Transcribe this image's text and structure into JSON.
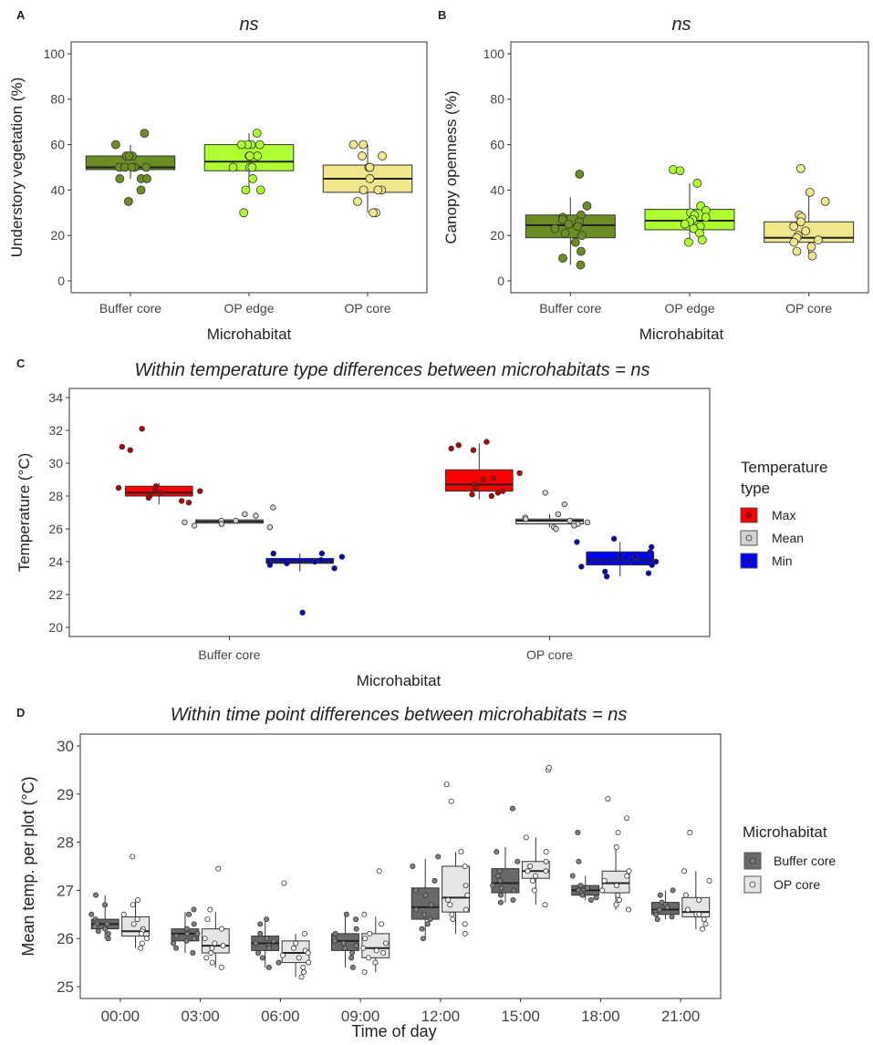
{
  "chart_data": [
    {
      "panel": "A",
      "type": "boxplot",
      "title": "ns",
      "xlabel": "Microhabitat",
      "ylabel": "Understory vegetation (%)",
      "ylim": [
        0,
        100
      ],
      "yticks": [
        0,
        20,
        40,
        60,
        80,
        100
      ],
      "categories": [
        "Buffer core",
        "OP edge",
        "OP core"
      ],
      "colors": [
        "#6b8e23",
        "#adff2f",
        "#f0e68c"
      ],
      "boxes": [
        {
          "q1": 49,
          "median": 50,
          "q3": 55,
          "lo": 45,
          "hi": 60
        },
        {
          "q1": 48.5,
          "median": 52.5,
          "q3": 60,
          "lo": 40,
          "hi": 65
        },
        {
          "q1": 39,
          "median": 45,
          "q3": 51,
          "lo": 30,
          "hi": 60
        }
      ],
      "points": [
        [
          65,
          60,
          55,
          55,
          55,
          50,
          50,
          50,
          50,
          50,
          45,
          45,
          45,
          40,
          35
        ],
        [
          65,
          60,
          60,
          60,
          60,
          55,
          55,
          55,
          50,
          50,
          50,
          45,
          40,
          40,
          30
        ],
        [
          60,
          60,
          55,
          55,
          50,
          50,
          50,
          45,
          45,
          40,
          40,
          40,
          35,
          30,
          30
        ]
      ]
    },
    {
      "panel": "B",
      "type": "boxplot",
      "title": "ns",
      "xlabel": "Microhabitat",
      "ylabel": "Canopy openness (%)",
      "ylim": [
        0,
        100
      ],
      "yticks": [
        0,
        20,
        40,
        60,
        80,
        100
      ],
      "categories": [
        "Buffer core",
        "OP edge",
        "OP core"
      ],
      "colors": [
        "#6b8e23",
        "#adff2f",
        "#f0e68c"
      ],
      "boxes": [
        {
          "q1": 19,
          "median": 24.5,
          "q3": 29,
          "lo": 7,
          "hi": 37
        },
        {
          "q1": 22.5,
          "median": 26.5,
          "q3": 31.5,
          "lo": 17,
          "hi": 43
        },
        {
          "q1": 17,
          "median": 19,
          "q3": 26,
          "lo": 11,
          "hi": 39
        }
      ],
      "points": [
        [
          47,
          33,
          29,
          28,
          27,
          26,
          25,
          24,
          23,
          21,
          20,
          17,
          13,
          10,
          7
        ],
        [
          49,
          48.5,
          43,
          33,
          31,
          30,
          29,
          28,
          27,
          26,
          25,
          24,
          23,
          21,
          18,
          17
        ],
        [
          49.5,
          39,
          35,
          29,
          28,
          26,
          24,
          22,
          20,
          19,
          18,
          17,
          15,
          13,
          11
        ]
      ]
    },
    {
      "panel": "C",
      "type": "boxplot",
      "title": "Within temperature type differences between microhabitats = ns",
      "xlabel": "Microhabitat",
      "ylabel": "Temperature (°C)",
      "ylim": [
        20,
        34
      ],
      "yticks": [
        20,
        22,
        24,
        26,
        28,
        30,
        32,
        34
      ],
      "categories": [
        "Buffer core",
        "OP core"
      ],
      "legend": {
        "title": "Temperature type",
        "entries": [
          "Max",
          "Mean",
          "Min"
        ]
      },
      "colors": {
        "Max": "#ff0000",
        "Mean": "#d3d3d3",
        "Min": "#0000ff"
      },
      "series": [
        {
          "name": "Max",
          "boxes": [
            {
              "q1": 28.0,
              "median": 28.2,
              "q3": 28.6,
              "lo": 27.5,
              "hi": 28.8
            },
            {
              "q1": 28.3,
              "median": 28.7,
              "q3": 29.6,
              "lo": 27.8,
              "hi": 31.2
            }
          ],
          "points": [
            [
              32.1,
              31.0,
              30.8,
              28.6,
              28.5,
              28.4,
              28.3,
              28.2,
              28.0,
              27.9,
              27.7,
              27.6
            ],
            [
              31.3,
              31.1,
              30.9,
              30.8,
              29.4,
              29.1,
              29.0,
              28.7,
              28.5,
              28.3,
              28.2,
              28.1,
              28.0
            ]
          ]
        },
        {
          "name": "Mean",
          "boxes": [
            {
              "q1": 26.35,
              "median": 26.45,
              "q3": 26.55,
              "lo": 26.3,
              "hi": 26.6
            },
            {
              "q1": 26.3,
              "median": 26.5,
              "q3": 26.6,
              "lo": 26.1,
              "hi": 26.9
            }
          ],
          "points": [
            [
              27.3,
              26.9,
              26.8,
              26.5,
              26.5,
              26.4,
              26.3,
              26.2,
              26.1
            ],
            [
              28.2,
              27.5,
              26.9,
              26.7,
              26.6,
              26.5,
              26.4,
              26.3,
              26.2,
              26.1,
              26.0
            ]
          ]
        },
        {
          "name": "Min",
          "boxes": [
            {
              "q1": 23.9,
              "median": 24.0,
              "q3": 24.2,
              "lo": 23.4,
              "hi": 24.5
            },
            {
              "q1": 23.8,
              "median": 24.1,
              "q3": 24.6,
              "lo": 23.1,
              "hi": 25.2
            }
          ],
          "points": [
            [
              24.5,
              24.5,
              24.3,
              24.1,
              24.0,
              23.9,
              23.8,
              23.6,
              20.9
            ],
            [
              25.4,
              25.2,
              24.9,
              24.6,
              24.4,
              24.3,
              24.1,
              24.0,
              23.8,
              23.7,
              23.4,
              23.3,
              23.1
            ]
          ]
        }
      ]
    },
    {
      "panel": "D",
      "type": "boxplot",
      "title": "Within time point differences between microhabitats = ns",
      "xlabel": "Time of day",
      "ylabel": "Mean temp. per plot (°C)",
      "ylim": [
        25,
        30
      ],
      "yticks": [
        25,
        26,
        27,
        28,
        29,
        30
      ],
      "categories": [
        "00:00",
        "03:00",
        "06:00",
        "09:00",
        "12:00",
        "15:00",
        "18:00",
        "21:00"
      ],
      "legend": {
        "title": "Microhabitat",
        "entries": [
          "Buffer core",
          "OP core"
        ]
      },
      "colors": {
        "Buffer core": "#696969",
        "OP core": "#e5e5e5"
      },
      "series": [
        {
          "name": "Buffer core",
          "boxes": [
            {
              "q1": 26.2,
              "median": 26.3,
              "q3": 26.4,
              "lo": 26.0,
              "hi": 26.9
            },
            {
              "q1": 25.95,
              "median": 26.1,
              "q3": 26.2,
              "lo": 25.7,
              "hi": 26.55
            },
            {
              "q1": 25.75,
              "median": 25.9,
              "q3": 26.05,
              "lo": 25.4,
              "hi": 26.4
            },
            {
              "q1": 25.75,
              "median": 25.95,
              "q3": 26.1,
              "lo": 25.4,
              "hi": 26.5
            },
            {
              "q1": 26.4,
              "median": 26.65,
              "q3": 27.05,
              "lo": 26.0,
              "hi": 27.65
            },
            {
              "q1": 26.95,
              "median": 27.15,
              "q3": 27.45,
              "lo": 26.75,
              "hi": 27.9
            },
            {
              "q1": 26.9,
              "median": 27.0,
              "q3": 27.1,
              "lo": 26.8,
              "hi": 27.3
            },
            {
              "q1": 26.5,
              "median": 26.6,
              "q3": 26.75,
              "lo": 26.4,
              "hi": 27.0
            }
          ],
          "points": [
            [
              26.9,
              26.7,
              26.5,
              26.4,
              26.35,
              26.3,
              26.3,
              26.25,
              26.2,
              26.15,
              26.1,
              26.0
            ],
            [
              26.6,
              26.5,
              26.3,
              26.2,
              26.1,
              26.1,
              26.05,
              26.0,
              25.95,
              25.9,
              25.8,
              25.7
            ],
            [
              26.4,
              26.3,
              26.1,
              26.0,
              25.95,
              25.9,
              25.85,
              25.8,
              25.7,
              25.6,
              25.5,
              25.4
            ],
            [
              26.5,
              26.4,
              26.2,
              26.1,
              26.0,
              25.95,
              25.9,
              25.85,
              25.8,
              25.7,
              25.6,
              25.4
            ],
            [
              27.7,
              27.5,
              27.2,
              27.0,
              26.9,
              26.7,
              26.6,
              26.5,
              26.4,
              26.3,
              26.2,
              26.0
            ],
            [
              28.7,
              27.8,
              27.6,
              27.4,
              27.3,
              27.2,
              27.1,
              27.05,
              27.0,
              26.9,
              26.8,
              26.75
            ],
            [
              28.2,
              27.6,
              27.3,
              27.1,
              27.05,
              27.0,
              27.0,
              26.95,
              26.9,
              26.85,
              26.8
            ],
            [
              27.0,
              26.9,
              26.75,
              26.7,
              26.65,
              26.6,
              26.55,
              26.5,
              26.45,
              26.4
            ]
          ]
        },
        {
          "name": "OP core",
          "boxes": [
            {
              "q1": 26.05,
              "median": 26.15,
              "q3": 26.45,
              "lo": 25.8,
              "hi": 26.8
            },
            {
              "q1": 25.7,
              "median": 25.85,
              "q3": 26.2,
              "lo": 25.4,
              "hi": 26.55
            },
            {
              "q1": 25.5,
              "median": 25.7,
              "q3": 25.95,
              "lo": 25.2,
              "hi": 26.1
            },
            {
              "q1": 25.6,
              "median": 25.8,
              "q3": 26.1,
              "lo": 25.3,
              "hi": 26.45
            },
            {
              "q1": 26.55,
              "median": 26.85,
              "q3": 27.5,
              "lo": 26.1,
              "hi": 27.8
            },
            {
              "q1": 27.25,
              "median": 27.4,
              "q3": 27.6,
              "lo": 26.7,
              "hi": 28.1
            },
            {
              "q1": 26.95,
              "median": 27.15,
              "q3": 27.4,
              "lo": 26.6,
              "hi": 27.9
            },
            {
              "q1": 26.45,
              "median": 26.55,
              "q3": 26.85,
              "lo": 26.2,
              "hi": 27.4
            }
          ],
          "points": [
            [
              27.7,
              26.8,
              26.7,
              26.5,
              26.4,
              26.3,
              26.2,
              26.15,
              26.1,
              26.0,
              25.9,
              25.8
            ],
            [
              27.45,
              26.6,
              26.4,
              26.2,
              26.0,
              25.9,
              25.85,
              25.8,
              25.7,
              25.6,
              25.5,
              25.4
            ],
            [
              27.15,
              26.1,
              25.9,
              25.8,
              25.75,
              25.7,
              25.65,
              25.6,
              25.5,
              25.4,
              25.3,
              25.2
            ],
            [
              27.4,
              26.5,
              26.3,
              26.1,
              26.0,
              25.9,
              25.8,
              25.75,
              25.7,
              25.6,
              25.5,
              25.3
            ],
            [
              29.2,
              28.85,
              27.8,
              27.5,
              27.1,
              26.9,
              26.8,
              26.7,
              26.6,
              26.5,
              26.4,
              26.3,
              26.1
            ],
            [
              29.5,
              29.55,
              28.1,
              27.8,
              27.6,
              27.5,
              27.4,
              27.4,
              27.3,
              27.2,
              27.0,
              26.7
            ],
            [
              28.9,
              28.5,
              28.2,
              27.9,
              27.4,
              27.3,
              27.2,
              27.1,
              27.0,
              26.9,
              26.8,
              26.7,
              26.6
            ],
            [
              28.2,
              27.4,
              27.2,
              26.9,
              26.8,
              26.6,
              26.5,
              26.5,
              26.4,
              26.3,
              26.2
            ]
          ]
        }
      ]
    }
  ]
}
